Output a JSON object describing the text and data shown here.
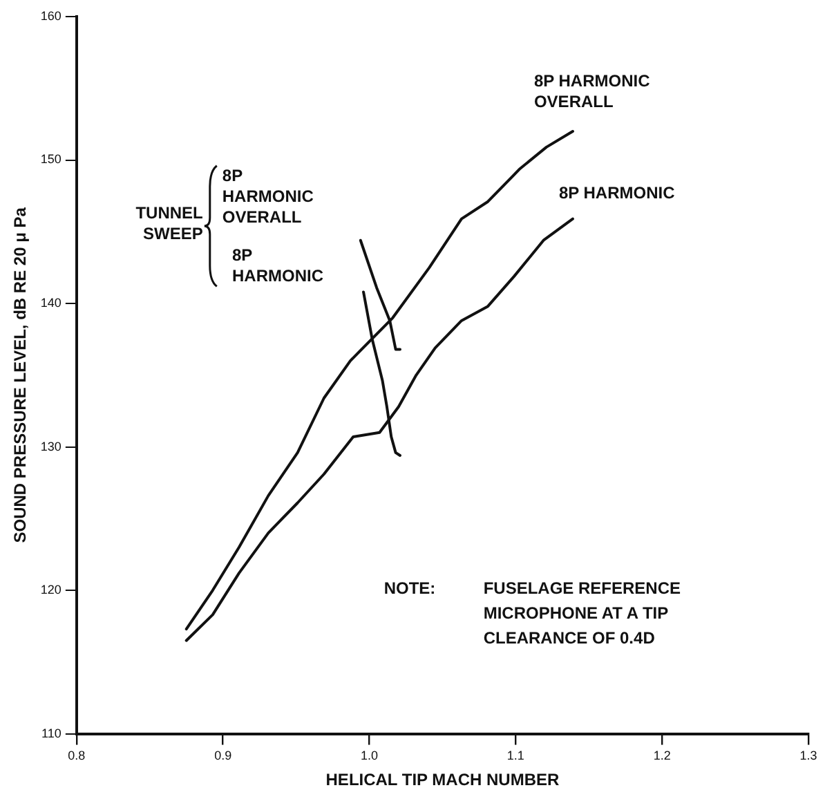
{
  "chart_data": {
    "type": "line",
    "xlabel": "HELICAL TIP MACH NUMBER",
    "ylabel": "SOUND PRESSURE LEVEL, dB RE 20 μ Pa",
    "xlim": [
      0.8,
      1.3
    ],
    "xticks": [
      {
        "value": 0.8,
        "label": "0.8"
      },
      {
        "value": 0.9,
        "label": "0.9"
      },
      {
        "value": 1,
        "label": "1.0"
      },
      {
        "value": 1.1,
        "label": "1.1"
      },
      {
        "value": 1.2,
        "label": "1.2"
      },
      {
        "value": 1.3,
        "label": "1.3"
      }
    ],
    "ylim": [
      110,
      160
    ],
    "yticks": [
      110,
      120,
      130,
      140,
      150,
      160
    ],
    "grid": false,
    "legend": false,
    "marker": "none",
    "line_style": "solid",
    "series": [
      {
        "name": "8P HARMONIC OVERALL",
        "color": "#111111",
        "x": [
          0.875,
          0.893,
          0.911,
          0.931,
          0.951,
          0.969,
          0.987,
          1.016,
          1.041,
          1.063,
          1.081,
          1.103,
          1.121,
          1.139
        ],
        "values": [
          117.3,
          120,
          123,
          126.6,
          129.6,
          133.4,
          136,
          139,
          142.5,
          145.9,
          147.1,
          149.4,
          150.9,
          152
        ]
      },
      {
        "name": "8P HARMONIC",
        "color": "#111111",
        "x": [
          0.875,
          0.893,
          0.911,
          0.931,
          0.951,
          0.969,
          0.989,
          1.007,
          1.02,
          1.032,
          1.045,
          1.063,
          1.081,
          1.099,
          1.119,
          1.139
        ],
        "values": [
          116.5,
          118.3,
          121.2,
          124,
          126.1,
          128.1,
          130.7,
          131,
          132.8,
          135,
          136.9,
          138.8,
          139.8,
          141.9,
          144.4,
          145.9
        ]
      },
      {
        "name": "8P HARMONIC OVERALL",
        "color": "#111111",
        "x": [
          0.994,
          1.005,
          1.014,
          1.018,
          1.021
        ],
        "values": [
          144.4,
          141.1,
          138.8,
          136.8,
          136.8
        ]
      },
      {
        "name": "8P HARMONIC",
        "color": "#111111",
        "x": [
          0.996,
          1.002,
          1.009,
          1.012,
          1.015,
          1.018,
          1.021
        ],
        "values": [
          140.8,
          137.5,
          134.6,
          132.8,
          130.7,
          129.6,
          129.4
        ]
      }
    ],
    "annotations": [
      "TUNNEL SWEEP",
      "NOTE:   FUSELAGE REFERENCE MICROPHONE AT A TIP CLEARANCE OF 0.4D"
    ]
  }
}
